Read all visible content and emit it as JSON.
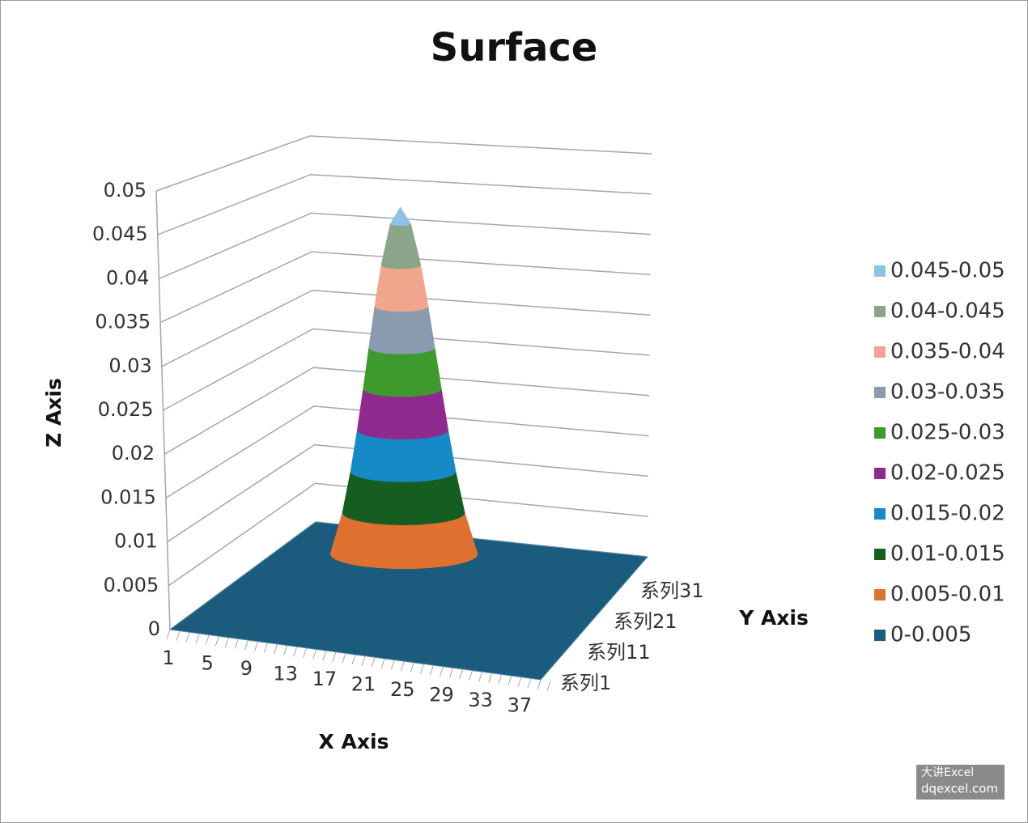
{
  "chart_data": {
    "type": "surface",
    "title": "Surface",
    "x_label": "X Axis",
    "y_label": "Y Axis",
    "z_label": "Z Axis",
    "x_categories": [
      "1",
      null,
      null,
      null,
      "5",
      null,
      null,
      null,
      "9",
      null,
      null,
      null,
      "13",
      null,
      null,
      null,
      "17",
      null,
      null,
      null,
      "21",
      null,
      null,
      null,
      "25",
      null,
      null,
      null,
      "29",
      null,
      null,
      null,
      "33",
      null,
      null,
      null,
      "37",
      null,
      null,
      null
    ],
    "y_categories": [
      "系列1",
      null,
      null,
      null,
      null,
      null,
      null,
      null,
      null,
      null,
      "系列11",
      null,
      null,
      null,
      null,
      null,
      null,
      null,
      null,
      null,
      "系列21",
      null,
      null,
      null,
      null,
      null,
      null,
      null,
      null,
      null,
      "系列31",
      null,
      null,
      null,
      null,
      null,
      null,
      null,
      null,
      null,
      null
    ],
    "zlim": [
      0,
      0.05
    ],
    "zticks": [
      0,
      0.005,
      0.01,
      0.015,
      0.02,
      0.025,
      0.03,
      0.035,
      0.04,
      0.045,
      0.05
    ],
    "peak_value": 0.047,
    "series": [
      {
        "name": "0.045-0.05",
        "color": "#8ec2e6"
      },
      {
        "name": "0.04-0.045",
        "color": "#8aa58a"
      },
      {
        "name": "0.035-0.04",
        "color": "#f0a58c"
      },
      {
        "name": "0.03-0.035",
        "color": "#8a9bb0"
      },
      {
        "name": "0.025-0.03",
        "color": "#3f9a2e"
      },
      {
        "name": "0.02-0.025",
        "color": "#8e2a8e"
      },
      {
        "name": "0.015-0.02",
        "color": "#148ac6"
      },
      {
        "name": "0.01-0.015",
        "color": "#155e20"
      },
      {
        "name": "0.005-0.01",
        "color": "#e07030"
      },
      {
        "name": "0-0.005",
        "color": "#1a5b7e"
      }
    ],
    "legend": "right",
    "grid": true,
    "watermark": [
      "大讲Excel",
      "dqexcel.com"
    ]
  }
}
